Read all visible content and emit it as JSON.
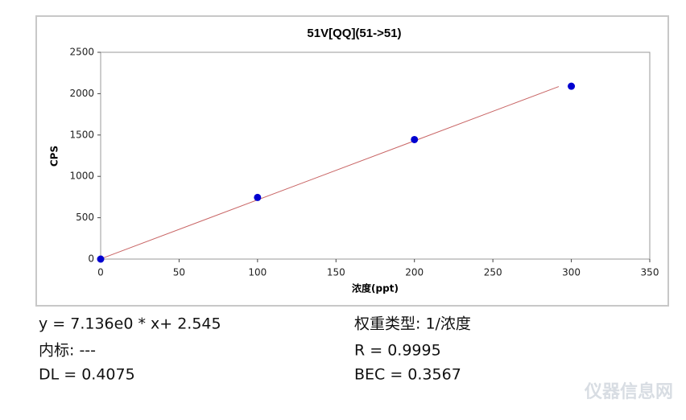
{
  "chart_data": {
    "type": "scatter",
    "title": "51V[QQ](51->51)",
    "x_label": "浓度(ppt)",
    "y_label": "CPS",
    "x": [
      0,
      100,
      200,
      300
    ],
    "values": [
      0,
      745,
      1445,
      2090
    ],
    "color": "#0000d0",
    "fit": {
      "x": [
        0,
        292
      ],
      "values": [
        2.5,
        2086
      ],
      "color": "#c86464"
    },
    "xlim": [
      0,
      350
    ],
    "xticks": [
      0,
      50,
      100,
      150,
      200,
      250,
      300,
      350
    ],
    "ylim": [
      0,
      2500
    ],
    "yticks": [
      0,
      500,
      1000,
      1500,
      2000,
      2500
    ],
    "grid": false,
    "annotations": [
      "y = 7.136e0 * x+ 2.545",
      "内标: ---",
      "DL = 0.4075",
      "权重类型: 1/浓度",
      "R = 0.9995",
      "BEC = 0.3567"
    ],
    "watermark": "仪器信息网"
  }
}
